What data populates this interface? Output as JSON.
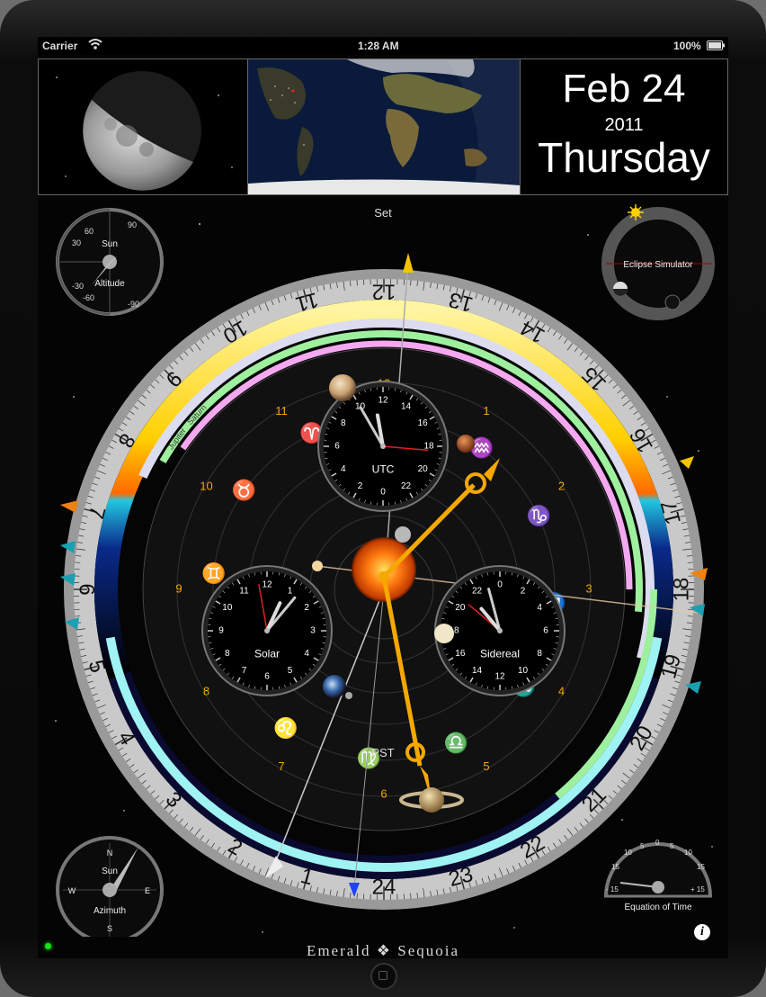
{
  "status_bar": {
    "carrier": "Carrier",
    "time": "1:28 AM",
    "battery": "100%"
  },
  "date_panel": {
    "month_day": "Feb 24",
    "year": "2011",
    "weekday": "Thursday"
  },
  "main_dial": {
    "top_label": "Set",
    "outer_hours": [
      "24",
      "1",
      "2",
      "3",
      "4",
      "5",
      "6",
      "7",
      "8",
      "9",
      "10",
      "11",
      "12",
      "13",
      "14",
      "15",
      "16",
      "17",
      "18",
      "19",
      "20",
      "21",
      "22",
      "23"
    ],
    "inner_hours": [
      "12",
      "1",
      "2",
      "3",
      "4",
      "5",
      "6",
      "7",
      "8",
      "9",
      "10",
      "11"
    ],
    "timezone_label": "PST",
    "planet_arcs": [
      "Moon",
      "Venus",
      "Mercury",
      "Mars",
      "Jupiter",
      "Saturn"
    ]
  },
  "dials": {
    "utc": {
      "label": "UTC",
      "numbers": [
        "12",
        "14",
        "16",
        "18",
        "20",
        "22",
        "0",
        "2",
        "4",
        "6",
        "8",
        "10"
      ]
    },
    "solar": {
      "label": "Solar",
      "numbers": [
        "12",
        "1",
        "2",
        "3",
        "4",
        "5",
        "6",
        "7",
        "8",
        "9",
        "10",
        "11"
      ]
    },
    "sidereal": {
      "label": "Sidereal",
      "numbers": [
        "0",
        "2",
        "4",
        "6",
        "8",
        "10",
        "12",
        "14",
        "16",
        "18",
        "20",
        "22"
      ]
    }
  },
  "altitude_gauge": {
    "title": "Sun",
    "label": "Altitude",
    "ticks": [
      "90",
      "60",
      "30",
      "-30",
      "-60",
      "-90"
    ]
  },
  "eclipse_simulator": {
    "label": "Eclipse Simulator"
  },
  "azimuth_compass": {
    "title": "Sun",
    "label": "Azimuth",
    "directions": [
      "N",
      "E",
      "S",
      "W"
    ]
  },
  "equation_of_time": {
    "label": "Equation of Time",
    "ticks": [
      "15",
      "10",
      "5",
      "0",
      "5",
      "10",
      "15"
    ],
    "minus": "- 15",
    "plus": "+ 15"
  },
  "brand": "Emerald ❖ Sequoia",
  "info_icon": "i",
  "colors": {
    "gold": "#f5a800",
    "cyan": "#9ff3f3",
    "dial_bezel": "#8a8a8a"
  }
}
